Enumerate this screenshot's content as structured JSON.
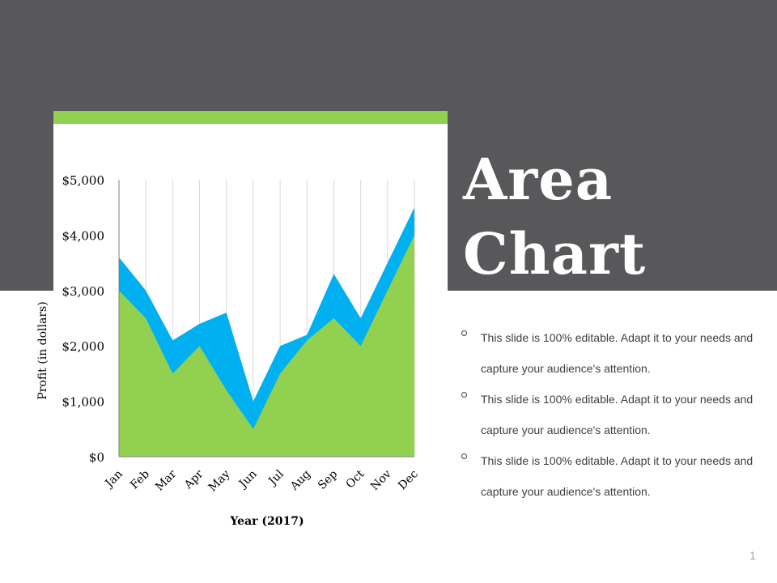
{
  "slide": {
    "title_line1": "Area",
    "title_line2": "Chart",
    "bullets": [
      "This slide is 100% editable. Adapt it to your needs and capture your audience's attention.",
      "This slide is 100% editable. Adapt it to your needs and capture your audience's attention.",
      "This slide is 100% editable. Adapt it to your needs and capture your audience's attention."
    ],
    "page_number": "1"
  },
  "colors": {
    "band": "#58585a",
    "accent_green": "#92d050",
    "accent_blue": "#00b0f0"
  },
  "chart_data": {
    "type": "area",
    "stacked": false,
    "title": "",
    "xlabel": "Year (2017)",
    "ylabel": "Profit (in dollars)",
    "categories": [
      "Jan",
      "Feb",
      "Mar",
      "Apr",
      "May",
      "Jun",
      "Jul",
      "Aug",
      "Sep",
      "Oct",
      "Nov",
      "Dec"
    ],
    "ylim": [
      0,
      5000
    ],
    "yticks": [
      0,
      1000,
      2000,
      3000,
      4000,
      5000
    ],
    "ytick_labels": [
      "$0",
      "$1,000",
      "$2,000",
      "$3,000",
      "$4,000",
      "$5,000"
    ],
    "grid": "vertical",
    "legend": "none",
    "series": [
      {
        "color": "#00b0f0",
        "values": [
          3600,
          3000,
          2100,
          2400,
          2600,
          1000,
          2000,
          2200,
          3300,
          2500,
          3500,
          4500
        ]
      },
      {
        "color": "#92d050",
        "values": [
          3000,
          2500,
          1500,
          2000,
          1200,
          500,
          1500,
          2100,
          2500,
          2000,
          3000,
          4000
        ]
      }
    ]
  }
}
